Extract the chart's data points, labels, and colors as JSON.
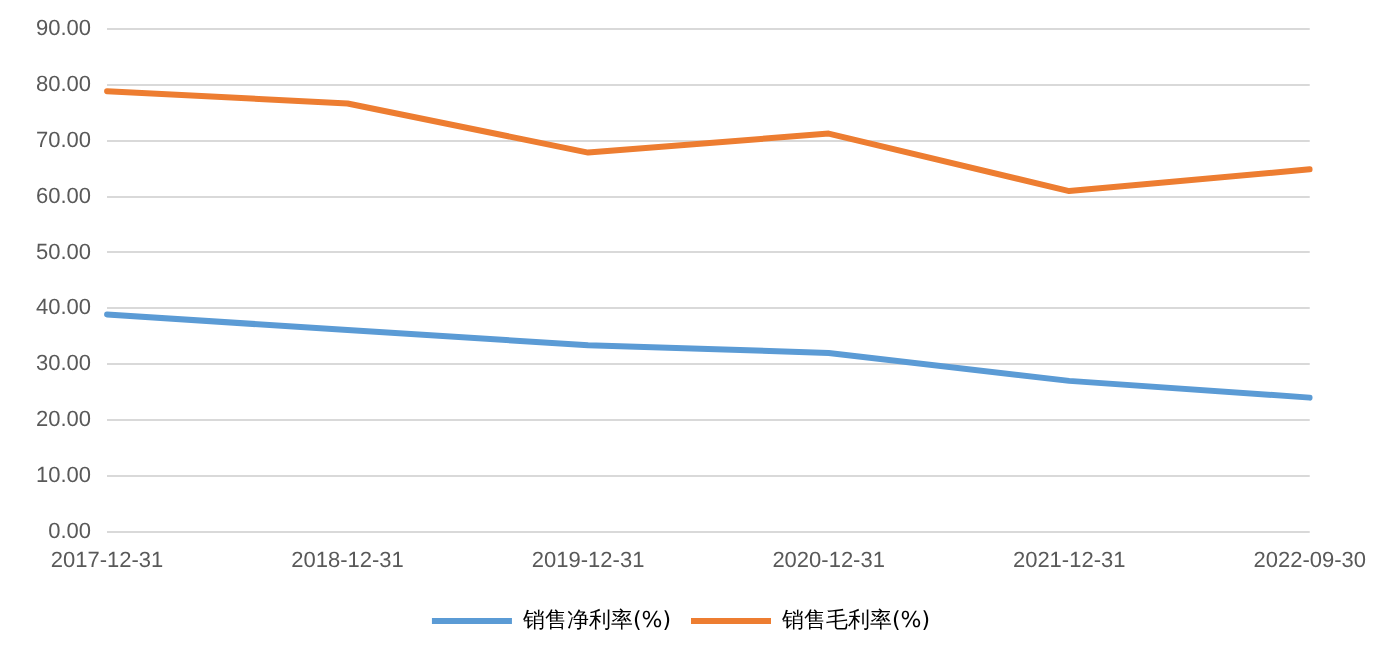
{
  "chart_data": {
    "type": "line",
    "categories": [
      "2017-12-31",
      "2018-12-31",
      "2019-12-31",
      "2020-12-31",
      "2021-12-31",
      "2022-09-30"
    ],
    "series": [
      {
        "name": "销售净利率(%)",
        "color": "#5b9bd5",
        "values": [
          38.9,
          36.1,
          33.4,
          32.0,
          27.0,
          24.0
        ]
      },
      {
        "name": "销售毛利率(%)",
        "color": "#ed7d31",
        "values": [
          78.9,
          76.7,
          67.9,
          71.3,
          61.0,
          64.9
        ]
      }
    ],
    "ylim": [
      0,
      90
    ],
    "yticks": [
      {
        "value": 0,
        "label": "0.00"
      },
      {
        "value": 10,
        "label": "10.00"
      },
      {
        "value": 20,
        "label": "20.00"
      },
      {
        "value": 30,
        "label": "30.00"
      },
      {
        "value": 40,
        "label": "40.00"
      },
      {
        "value": 50,
        "label": "50.00"
      },
      {
        "value": 60,
        "label": "60.00"
      },
      {
        "value": 70,
        "label": "70.00"
      },
      {
        "value": 80,
        "label": "80.00"
      },
      {
        "value": 90,
        "label": "90.00"
      }
    ],
    "grid": "y",
    "legend": "bottom",
    "marker": "none",
    "line_style": "solid"
  }
}
